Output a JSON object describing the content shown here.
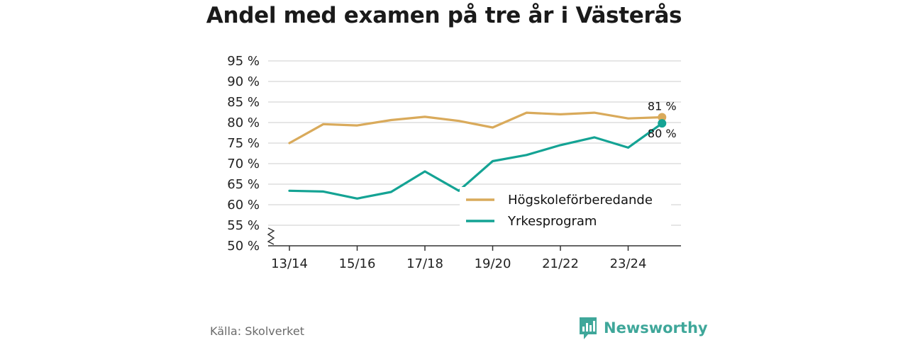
{
  "chart_data": {
    "type": "line",
    "title": "Andel med examen på tre år i Västerås",
    "x": [
      "13/14",
      "14/15",
      "15/16",
      "16/17",
      "17/18",
      "18/19",
      "19/20",
      "20/21",
      "21/22",
      "22/23",
      "23/24",
      "24/25"
    ],
    "x_tick_labels": [
      "13/14",
      "15/16",
      "17/18",
      "19/20",
      "21/22",
      "23/24"
    ],
    "y_tick_labels": [
      "50 %",
      "55 %",
      "60 %",
      "65 %",
      "70 %",
      "75 %",
      "80 %",
      "85 %",
      "90 %",
      "95 %"
    ],
    "ylim": [
      50,
      95
    ],
    "y_axis_break": true,
    "grid": true,
    "legend_position": "bottom-right",
    "series": [
      {
        "name": "Högskoleförberedande",
        "color": "#d9aa5b",
        "values": [
          75.0,
          79.6,
          79.3,
          80.6,
          81.4,
          80.4,
          78.8,
          82.4,
          82.0,
          82.4,
          81.0,
          81.3
        ],
        "end_label": "81 %"
      },
      {
        "name": "Yrkesprogram",
        "color": "#14a394",
        "values": [
          63.4,
          63.2,
          61.5,
          63.1,
          68.1,
          63.4,
          70.6,
          72.1,
          74.5,
          76.4,
          73.9,
          79.8
        ],
        "end_label": "80 %"
      }
    ]
  },
  "footer": {
    "source": "Källa: Skolverket",
    "brand": "Newsworthy",
    "brand_color": "#3fa79a",
    "brand_icon": "bar-chart-speech-bubble-icon"
  }
}
